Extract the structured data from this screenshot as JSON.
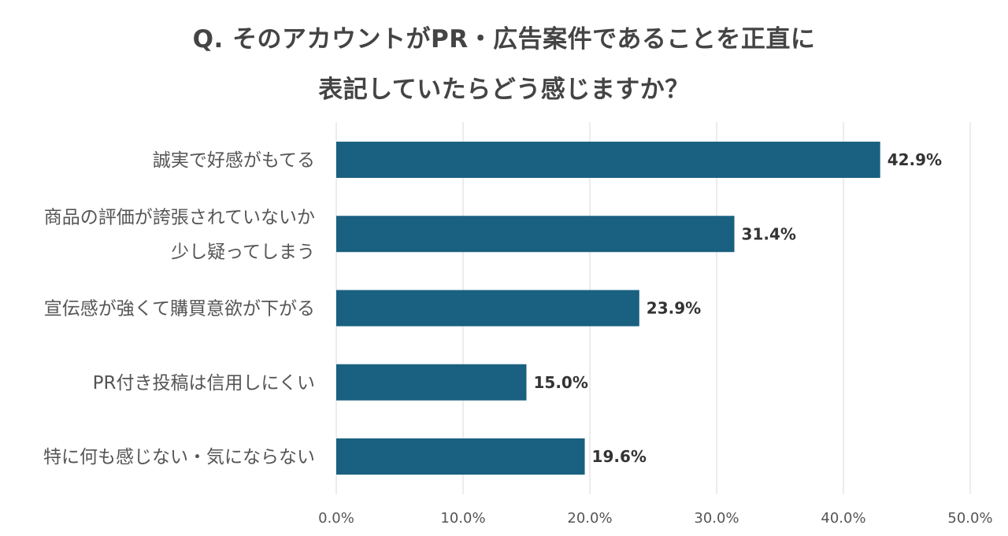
{
  "title_lines": [
    "Q. そのアカウントがPR・広告案件であることを正直に",
    "表記していたらどう感じますか？"
  ],
  "chart_data": {
    "type": "bar",
    "orientation": "horizontal",
    "categories": [
      [
        "誠実で好感がもてる"
      ],
      [
        "商品の評価が誇張されていないか",
        "少し疑ってしまう"
      ],
      [
        "宣伝感が強くて購買意欲が下がる"
      ],
      [
        "PR付き投稿は信用しにくい"
      ],
      [
        "特に何も感じない・気にならない"
      ]
    ],
    "values": [
      42.9,
      31.4,
      23.9,
      15.0,
      19.6
    ],
    "value_labels": [
      "42.9%",
      "31.4%",
      "23.9%",
      "15.0%",
      "19.6%"
    ],
    "xlim": [
      0,
      50
    ],
    "xticks": [
      0,
      10,
      20,
      30,
      40,
      50
    ],
    "xtick_labels": [
      "0.0%",
      "10.0%",
      "20.0%",
      "30.0%",
      "40.0%",
      "50.0%"
    ],
    "grid": true,
    "bar_color": "#1a6080"
  }
}
